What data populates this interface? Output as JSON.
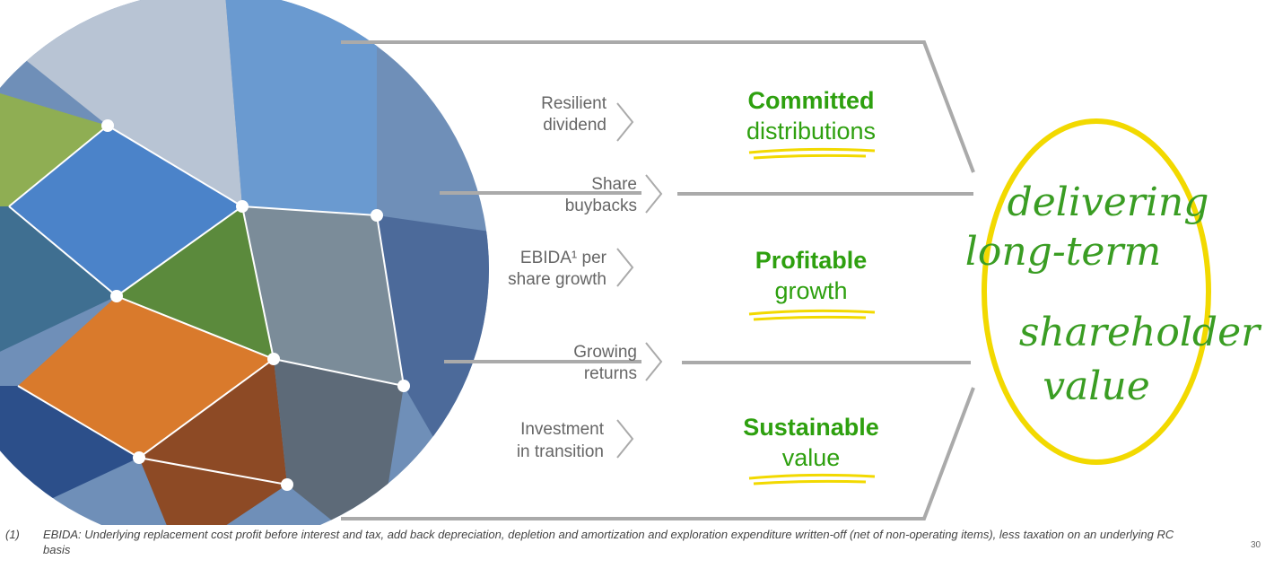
{
  "drivers": [
    {
      "lines": [
        "Resilient",
        "dividend"
      ]
    },
    {
      "lines": [
        "Share",
        "buybacks"
      ]
    },
    {
      "lines": [
        "EBIDA¹ per",
        "share growth"
      ]
    },
    {
      "lines": [
        "Growing",
        "returns"
      ]
    },
    {
      "lines": [
        "Investment",
        "in transition"
      ]
    }
  ],
  "outcomes": [
    {
      "bold": "Committed",
      "light": "distributions"
    },
    {
      "bold": "Profitable",
      "light": "growth"
    },
    {
      "bold": "Sustainable",
      "light": "value"
    }
  ],
  "tagline": [
    "delivering",
    "long-term",
    "shareholder",
    "value"
  ],
  "footnote": {
    "marker": "(1)",
    "text": "EBIDA: Underlying replacement cost profit before interest and tax, add back depreciation, depletion and amortization and exploration expenditure written-off (net of non-operating items), less taxation on an underlying RC basis"
  },
  "page_number": "30"
}
